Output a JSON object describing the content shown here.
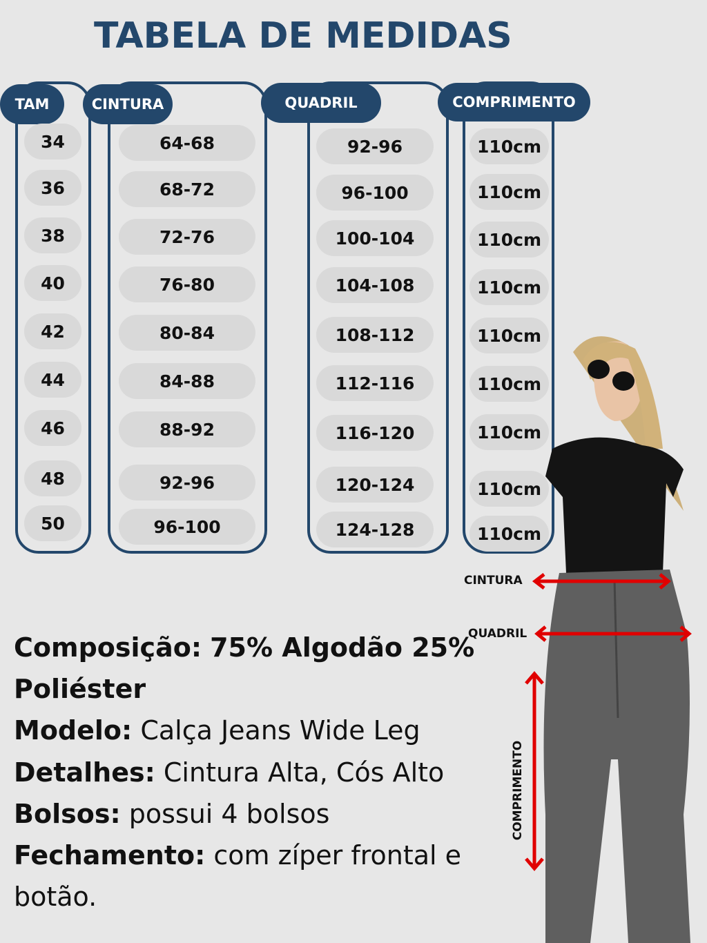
{
  "title": "TABELA DE MEDIDAS",
  "colors": {
    "navy": "#23476b",
    "pill": "#d9d9d9",
    "background": "#e7e7e7",
    "arrow": "#e00000"
  },
  "table": {
    "columns": [
      {
        "header": "TAM",
        "values": [
          "34",
          "36",
          "38",
          "40",
          "42",
          "44",
          "46",
          "48",
          "50"
        ]
      },
      {
        "header": "CINTURA",
        "values": [
          "64-68",
          "68-72",
          "72-76",
          "76-80",
          "80-84",
          "84-88",
          "88-92",
          "92-96",
          "96-100"
        ]
      },
      {
        "header": "QUADRIL",
        "values": [
          "92-96",
          "96-100",
          "100-104",
          "104-108",
          "108-112",
          "112-116",
          "116-120",
          "120-124",
          "124-128"
        ]
      },
      {
        "header": "COMPRIMENTO",
        "values": [
          "110cm",
          "110cm",
          "110cm",
          "110cm",
          "110cm",
          "110cm",
          "110cm",
          "110cm",
          "110cm"
        ]
      }
    ]
  },
  "details": {
    "composicao_label": "Composição:",
    "composicao_value": "75% Algodão 25% Poliéster",
    "modelo_label": "Modelo:",
    "modelo_value": "Calça Jeans Wide Leg",
    "detalhes_label": "Detalhes:",
    "detalhes_value": "Cintura Alta, Cós Alto",
    "bolsos_label": "Bolsos:",
    "bolsos_value": "possui 4 bolsos",
    "fechamento_label": "Fechamento:",
    "fechamento_value": "com zíper frontal e botão."
  },
  "figure": {
    "labels": {
      "cintura": "CINTURA",
      "quadril": "QUADRIL",
      "comprimento": "COMPRIMENTO"
    }
  }
}
